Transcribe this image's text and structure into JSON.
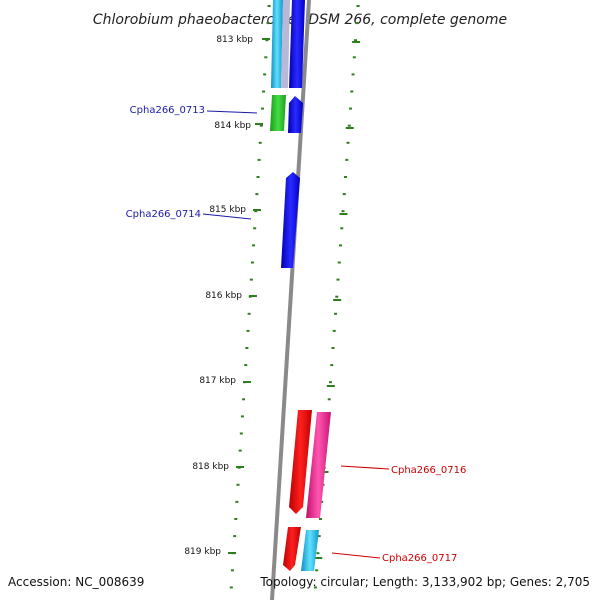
{
  "title": "Chlorobium phaeobacteroides DSM 266, complete genome",
  "footer": {
    "accession": "Accession: NC_008639",
    "topology": "Topology: circular; Length: 3,133,902 bp; Genes: 2,705"
  },
  "ticks": [
    {
      "label": "813 kbp"
    },
    {
      "label": "814 kbp"
    },
    {
      "label": "815 kbp"
    },
    {
      "label": "816 kbp"
    },
    {
      "label": "817 kbp"
    },
    {
      "label": "818 kbp"
    },
    {
      "label": "819 kbp"
    }
  ],
  "genes": [
    {
      "label": "Cpha266_0713",
      "color": "#1a1aa8"
    },
    {
      "label": "Cpha266_0714",
      "color": "#1a1aa8"
    },
    {
      "label": "Cpha266_0716",
      "color": "#cc0000"
    },
    {
      "label": "Cpha266_0717",
      "color": "#cc0000"
    }
  ],
  "colors": {
    "backbone": "#8a8a8a",
    "tick_marks": "#2e7d1f",
    "blue": "#1010e0",
    "green": "#22b822",
    "cyan": "#20b8d8",
    "red": "#e00000",
    "magenta": "#e0208a"
  }
}
